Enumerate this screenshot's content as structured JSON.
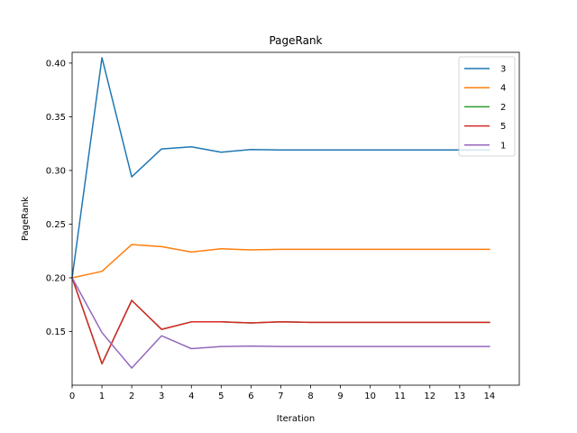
{
  "chart_data": {
    "type": "line",
    "title": "PageRank",
    "xlabel": "Iteration",
    "ylabel": "PageRank",
    "x": [
      0,
      1,
      2,
      3,
      4,
      5,
      6,
      7,
      8,
      9,
      10,
      11,
      12,
      13,
      14
    ],
    "xlim": [
      0,
      15
    ],
    "ylim": [
      0.1,
      0.41
    ],
    "xticks": [
      "0",
      "1",
      "2",
      "3",
      "4",
      "5",
      "6",
      "7",
      "8",
      "9",
      "10",
      "11",
      "12",
      "13",
      "14"
    ],
    "yticks": [
      "0.15",
      "0.20",
      "0.25",
      "0.30",
      "0.35",
      "0.40"
    ],
    "ytick_values": [
      0.15,
      0.2,
      0.25,
      0.3,
      0.35,
      0.4
    ],
    "grid": false,
    "legend_position": "top-right",
    "series": [
      {
        "name": "3",
        "color": "#1f77b4",
        "values": [
          0.2,
          0.405,
          0.294,
          0.32,
          0.322,
          0.317,
          0.3195,
          0.319,
          0.319,
          0.319,
          0.319,
          0.319,
          0.319,
          0.319,
          0.319
        ]
      },
      {
        "name": "4",
        "color": "#ff7f0e",
        "values": [
          0.2,
          0.206,
          0.231,
          0.229,
          0.224,
          0.227,
          0.226,
          0.2265,
          0.2265,
          0.2265,
          0.2265,
          0.2265,
          0.2265,
          0.2265,
          0.2265
        ]
      },
      {
        "name": "2",
        "color": "#2ca02c",
        "values": [
          0.2,
          0.12,
          0.179,
          0.152,
          0.159,
          0.159,
          0.158,
          0.159,
          0.1585,
          0.1585,
          0.1585,
          0.1585,
          0.1585,
          0.1585,
          0.1585
        ]
      },
      {
        "name": "5",
        "color": "#d62728",
        "values": [
          0.2,
          0.12,
          0.179,
          0.152,
          0.159,
          0.159,
          0.158,
          0.159,
          0.1585,
          0.1585,
          0.1585,
          0.1585,
          0.1585,
          0.1585,
          0.1585
        ]
      },
      {
        "name": "1",
        "color": "#9467bd",
        "values": [
          0.2,
          0.149,
          0.116,
          0.146,
          0.134,
          0.136,
          0.1365,
          0.136,
          0.136,
          0.136,
          0.136,
          0.136,
          0.136,
          0.136,
          0.136
        ]
      }
    ]
  }
}
